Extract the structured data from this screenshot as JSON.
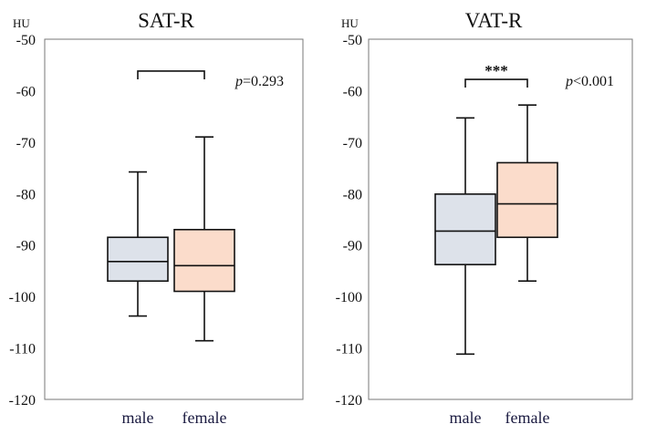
{
  "chart_data": [
    {
      "type": "boxplot",
      "title": "SAT-R",
      "ylabel": "HU",
      "ylim": [
        -120,
        -50
      ],
      "yticks": [
        -50,
        -60,
        -70,
        -80,
        -90,
        -100,
        -110,
        -120
      ],
      "categories": [
        "male",
        "female"
      ],
      "boxes": [
        {
          "name": "male",
          "color": "#dde2ea",
          "whisker_high": -75.8,
          "q3": -88.5,
          "median": -93.2,
          "q1": -97.0,
          "whisker_low": -103.8
        },
        {
          "name": "female",
          "color": "#fbdccb",
          "whisker_high": -69.0,
          "q3": -87.0,
          "median": -94.0,
          "q1": -99.0,
          "whisker_low": -108.6
        }
      ],
      "bracket_y": -56.2,
      "significance": "",
      "p_prefix": "p",
      "p_text": "=0.293"
    },
    {
      "type": "boxplot",
      "title": "VAT-R",
      "ylabel": "HU",
      "ylim": [
        -120,
        -50
      ],
      "yticks": [
        -50,
        -60,
        -70,
        -80,
        -90,
        -100,
        -110,
        -120
      ],
      "categories": [
        "male",
        "female"
      ],
      "boxes": [
        {
          "name": "male",
          "color": "#dde2ea",
          "whisker_high": -65.3,
          "q3": -80.1,
          "median": -87.3,
          "q1": -93.8,
          "whisker_low": -111.2
        },
        {
          "name": "female",
          "color": "#fbdccb",
          "whisker_high": -62.8,
          "q3": -74.0,
          "median": -82.0,
          "q1": -88.5,
          "whisker_low": -97.0
        }
      ],
      "bracket_y": -57.8,
      "significance": "***",
      "p_prefix": "p",
      "p_text": "<0.001"
    }
  ]
}
